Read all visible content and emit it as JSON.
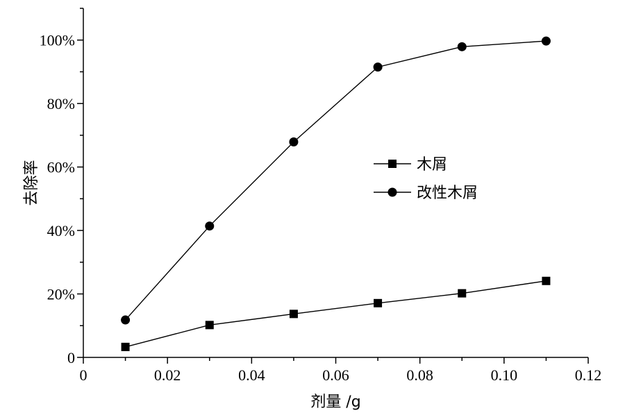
{
  "chart_data": {
    "type": "line",
    "title": "",
    "xlabel": "剂量 /g",
    "ylabel": "去除率",
    "xlim": [
      0,
      0.12
    ],
    "ylim": [
      0,
      1.1
    ],
    "x_ticks": [
      0,
      0.02,
      0.04,
      0.06,
      0.08,
      0.1,
      0.12
    ],
    "x_tick_labels": [
      "0",
      "0.02",
      "0.04",
      "0.06",
      "0.08",
      "0.10",
      "0.12"
    ],
    "y_ticks": [
      0,
      0.2,
      0.4,
      0.6,
      0.8,
      1.0
    ],
    "y_tick_labels": [
      "0",
      "20%",
      "40%",
      "60%",
      "80%",
      "100%"
    ],
    "grid": false,
    "legend_position": "center-right",
    "x": [
      0.01,
      0.03,
      0.05,
      0.07,
      0.09,
      0.11
    ],
    "series": [
      {
        "name": "木屑",
        "marker": "square",
        "values": [
          0.033,
          0.102,
          0.137,
          0.171,
          0.202,
          0.241
        ]
      },
      {
        "name": "改性木屑",
        "marker": "circle",
        "values": [
          0.118,
          0.414,
          0.679,
          0.915,
          0.979,
          0.997
        ]
      }
    ],
    "colors": {
      "line": "#000000",
      "marker": "#000000",
      "axis": "#000000"
    }
  }
}
